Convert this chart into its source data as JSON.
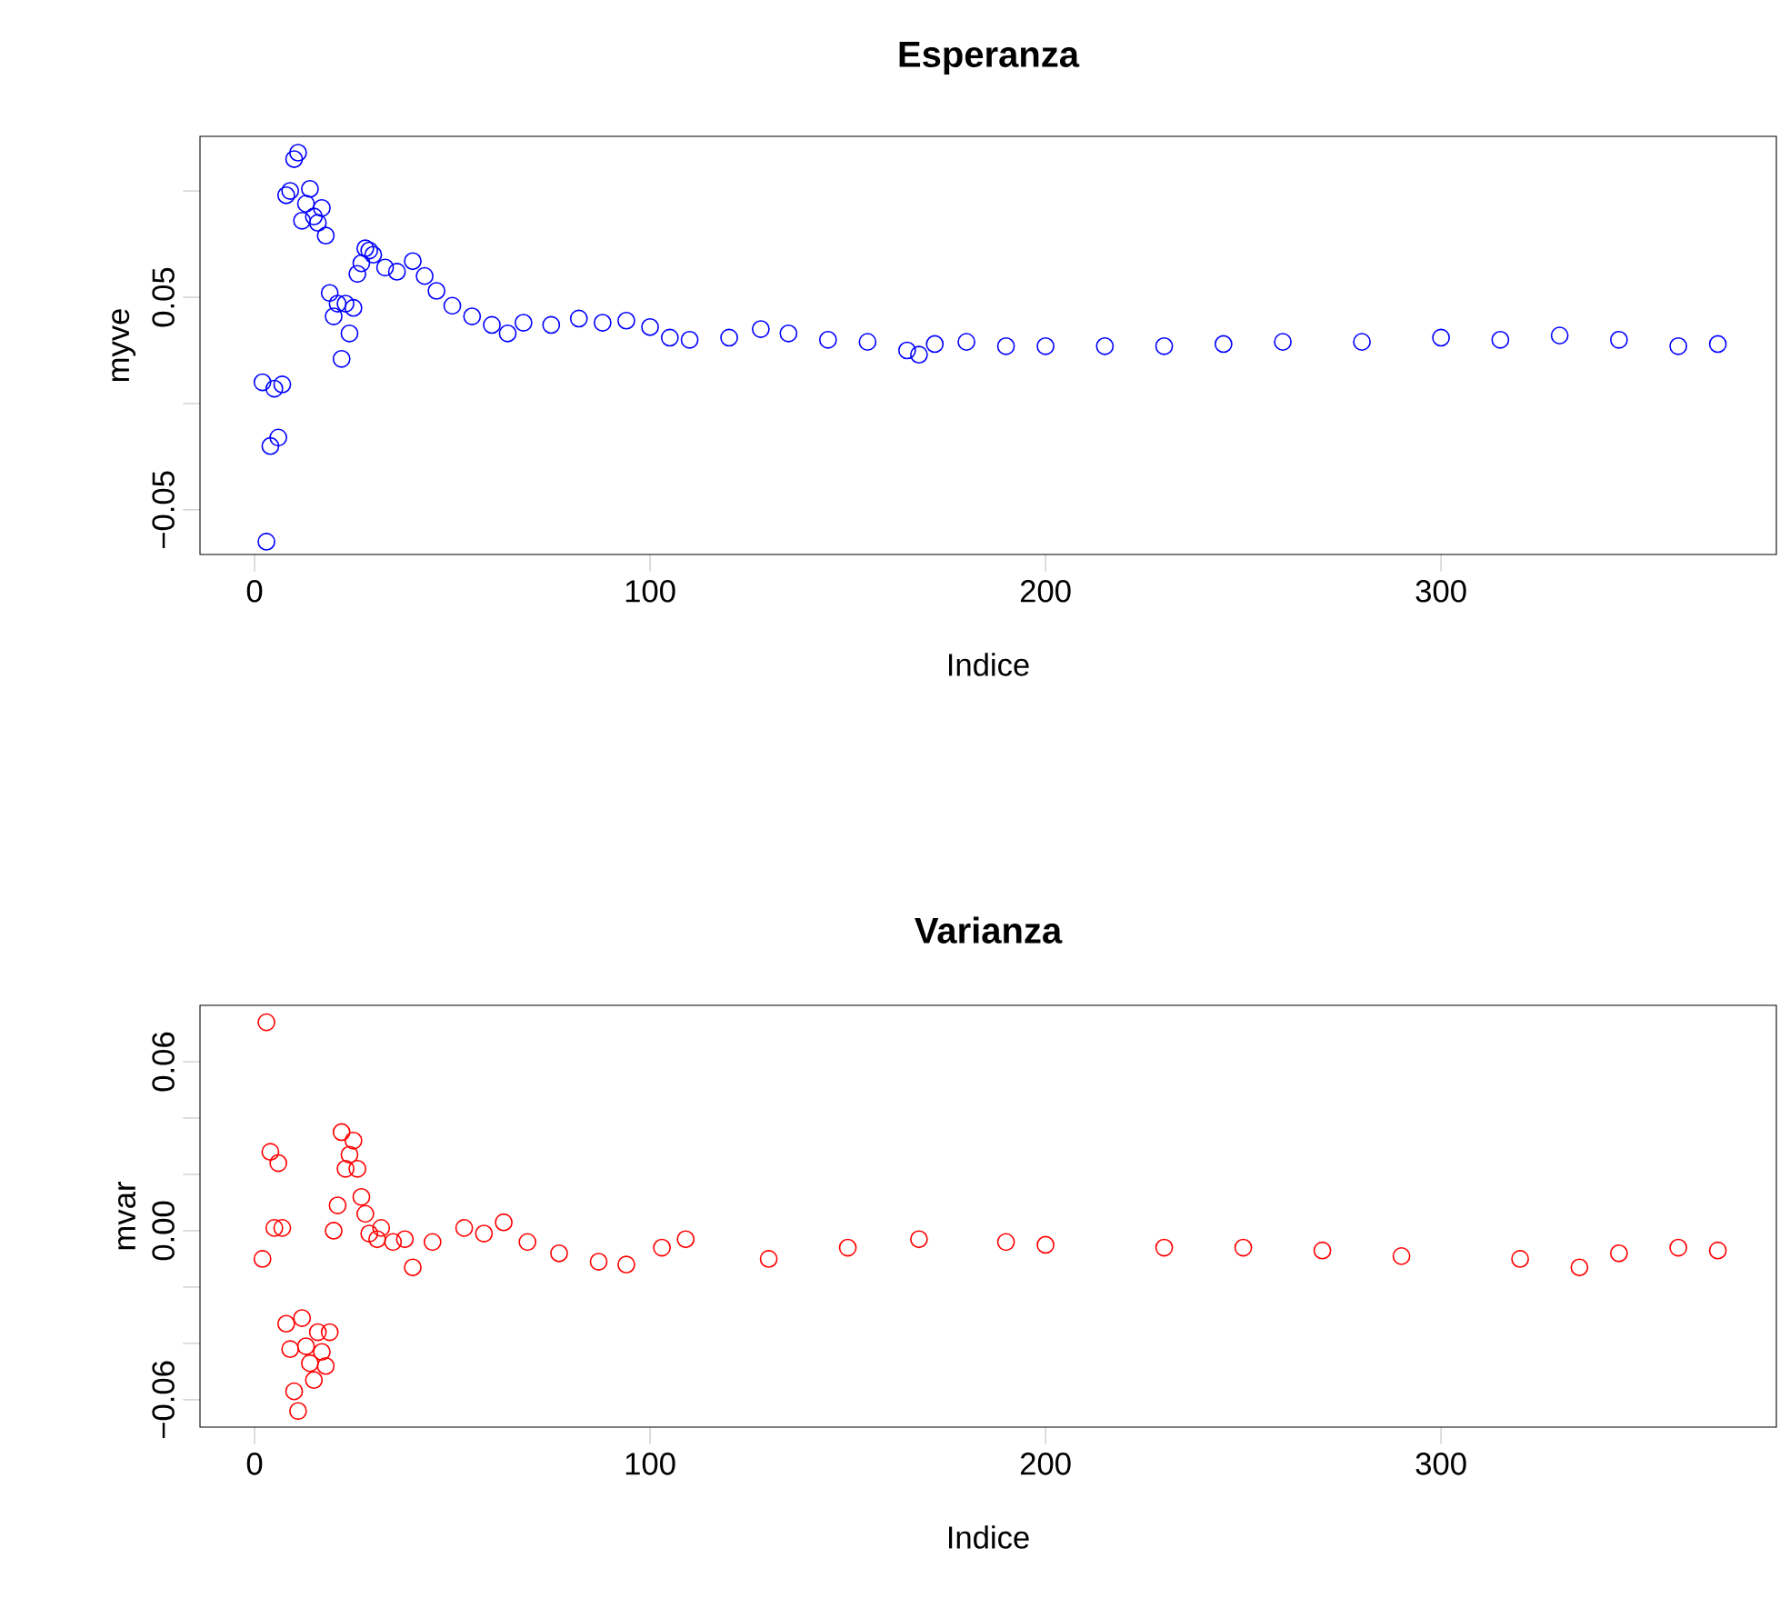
{
  "chart_data": [
    {
      "type": "scatter",
      "title": "Esperanza",
      "xlabel": "Indice",
      "ylabel": "myve",
      "marker": "circle",
      "xlim": [
        -13.8,
        384.8
      ],
      "ylim": [
        -0.071,
        0.1257
      ],
      "xticks": [
        0,
        100,
        200,
        300
      ],
      "yticks": [
        {
          "value": -0.05,
          "label": "−0.05"
        },
        {
          "value": 0,
          "label": null
        },
        0.05,
        {
          "value": 0.1,
          "label": null
        }
      ],
      "series": [
        {
          "color": "#0000ff",
          "x": [
            2,
            3,
            4,
            5,
            6,
            7,
            8,
            9,
            10,
            11,
            12,
            13,
            14,
            15,
            16,
            17,
            18,
            19,
            20,
            21,
            22,
            23,
            24,
            25,
            26,
            27,
            28,
            29,
            30,
            33,
            36,
            40,
            43,
            46,
            50,
            55,
            60,
            64,
            68,
            75,
            82,
            88,
            94,
            100,
            105,
            110,
            120,
            128,
            135,
            145,
            155,
            165,
            168,
            172,
            180,
            190,
            200,
            215,
            230,
            245,
            260,
            280,
            300,
            315,
            330,
            345,
            360,
            370
          ],
          "values": [
            0.01,
            -0.065,
            -0.02,
            0.007,
            -0.016,
            0.009,
            0.098,
            0.1,
            0.115,
            0.118,
            0.086,
            0.094,
            0.101,
            0.088,
            0.085,
            0.092,
            0.079,
            0.052,
            0.041,
            0.047,
            0.021,
            0.047,
            0.033,
            0.045,
            0.061,
            0.066,
            0.073,
            0.072,
            0.07,
            0.064,
            0.062,
            0.067,
            0.06,
            0.053,
            0.046,
            0.041,
            0.037,
            0.033,
            0.038,
            0.037,
            0.04,
            0.038,
            0.039,
            0.036,
            0.031,
            0.03,
            0.031,
            0.035,
            0.033,
            0.03,
            0.029,
            0.025,
            0.023,
            0.028,
            0.029,
            0.027,
            0.027,
            0.027,
            0.027,
            0.028,
            0.029,
            0.029,
            0.031,
            0.03,
            0.032,
            0.03,
            0.027,
            0.028
          ]
        }
      ]
    },
    {
      "type": "scatter",
      "title": "Varianza",
      "xlabel": "Indice",
      "ylabel": "mvar",
      "marker": "circle",
      "xlim": [
        -13.8,
        384.8
      ],
      "ylim": [
        -0.0697,
        0.08
      ],
      "xticks": [
        0,
        100,
        200,
        300
      ],
      "yticks": [
        {
          "value": -0.06,
          "label": "−0.06"
        },
        {
          "value": -0.04,
          "label": null
        },
        {
          "value": -0.02,
          "label": null
        },
        {
          "value": 0,
          "label": "0.00"
        },
        {
          "value": 0.02,
          "label": null
        },
        {
          "value": 0.04,
          "label": null
        },
        0.06
      ],
      "series": [
        {
          "color": "#ff0000",
          "x": [
            2,
            3,
            4,
            5,
            6,
            7,
            8,
            9,
            10,
            11,
            12,
            13,
            14,
            15,
            16,
            17,
            18,
            19,
            20,
            21,
            22,
            23,
            24,
            25,
            26,
            27,
            28,
            29,
            31,
            32,
            35,
            38,
            40,
            45,
            53,
            58,
            63,
            69,
            77,
            87,
            94,
            103,
            109,
            130,
            150,
            168,
            190,
            200,
            230,
            250,
            270,
            290,
            320,
            335,
            345,
            360,
            370
          ],
          "values": [
            -0.01,
            0.074,
            0.028,
            0.001,
            0.024,
            0.001,
            -0.033,
            -0.042,
            -0.057,
            -0.064,
            -0.031,
            -0.041,
            -0.047,
            -0.053,
            -0.036,
            -0.043,
            -0.048,
            -0.036,
            0.0,
            0.009,
            0.035,
            0.022,
            0.027,
            0.032,
            0.022,
            0.012,
            0.006,
            -0.001,
            -0.003,
            0.001,
            -0.004,
            -0.003,
            -0.013,
            -0.004,
            0.001,
            -0.001,
            0.003,
            -0.004,
            -0.008,
            -0.011,
            -0.012,
            -0.006,
            -0.003,
            -0.01,
            -0.006,
            -0.003,
            -0.004,
            -0.005,
            -0.006,
            -0.006,
            -0.007,
            -0.009,
            -0.01,
            -0.013,
            -0.008,
            -0.006,
            -0.007
          ]
        }
      ]
    }
  ]
}
